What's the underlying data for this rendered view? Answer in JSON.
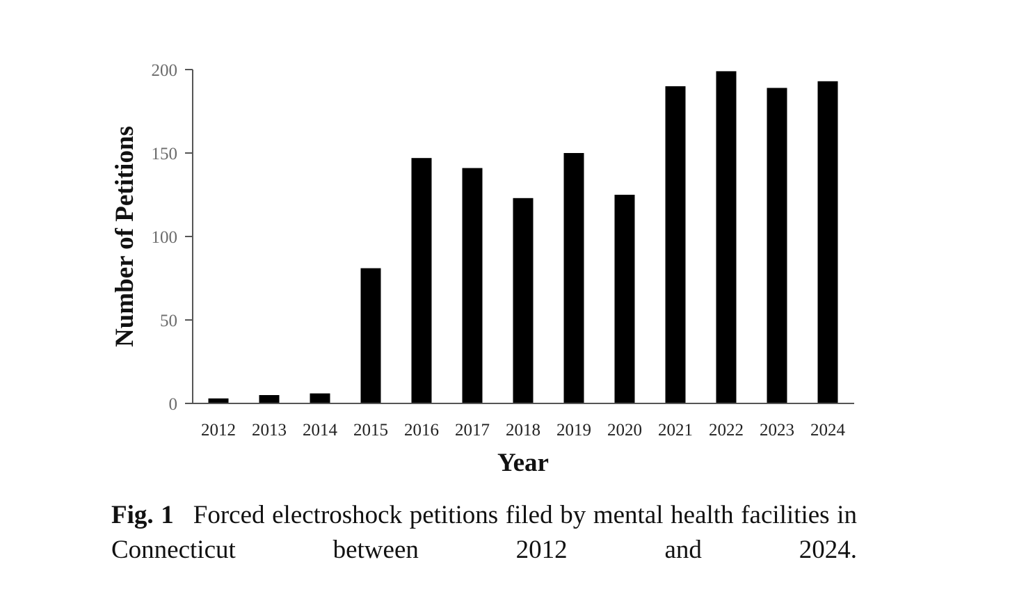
{
  "chart_data": {
    "type": "bar",
    "categories": [
      "2012",
      "2013",
      "2014",
      "2015",
      "2016",
      "2017",
      "2018",
      "2019",
      "2020",
      "2021",
      "2022",
      "2023",
      "2024"
    ],
    "values": [
      3,
      5,
      6,
      81,
      147,
      141,
      123,
      150,
      125,
      190,
      199,
      189,
      193
    ],
    "xlabel": "Year",
    "ylabel": "Number of Petitions",
    "ylim": [
      0,
      200
    ],
    "yticks": [
      "0",
      "50",
      "100",
      "150",
      "200"
    ],
    "grid": false,
    "bar_color": "#000000"
  },
  "caption": {
    "label": "Fig. 1",
    "text": "Forced electroshock petitions filed by mental health facilities in Connecticut between 2012 and 2024."
  }
}
